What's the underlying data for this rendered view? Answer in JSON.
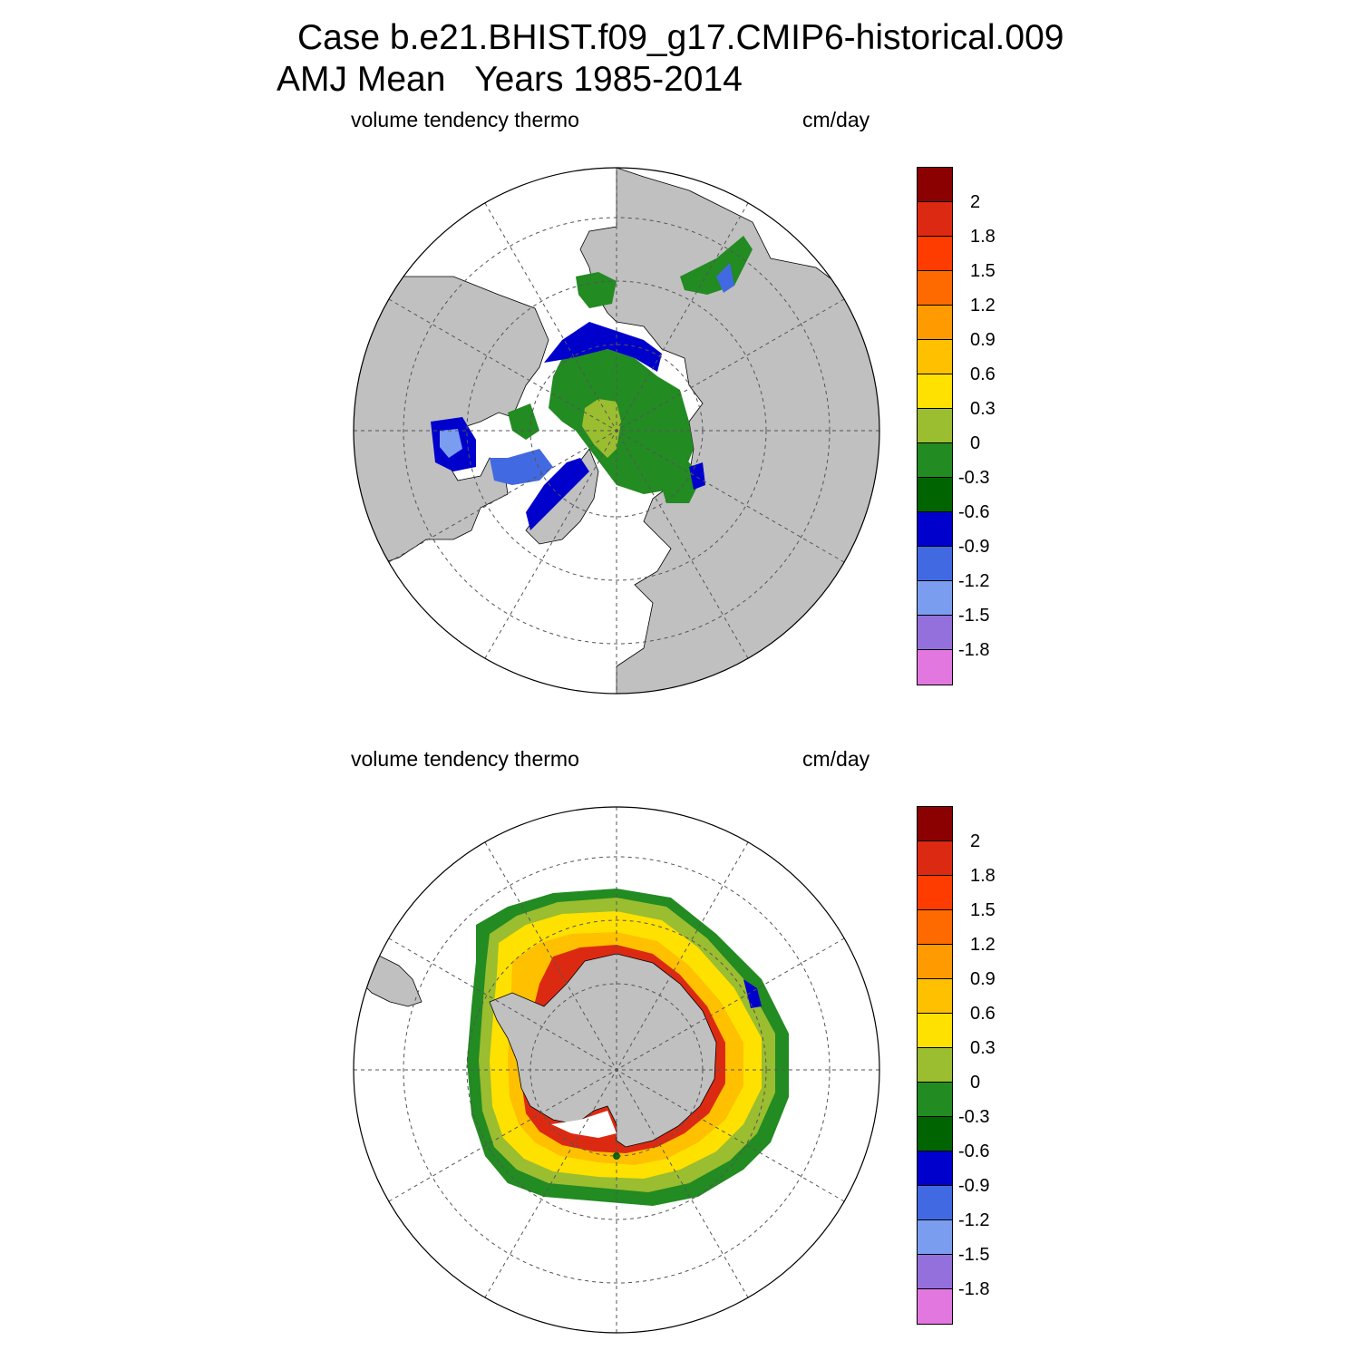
{
  "header": {
    "title_line1": "Case b.e21.BHIST.f09_g17.CMIP6-historical.009",
    "title_line2": "AMJ Mean   Years 1985-2014"
  },
  "panels": [
    {
      "id": "north",
      "left_label": "volume tendency thermo",
      "right_label": "cm/day"
    },
    {
      "id": "south",
      "left_label": "volume tendency thermo",
      "right_label": "cm/day"
    }
  ],
  "colorbar": {
    "labels": [
      "2",
      "1.8",
      "1.5",
      "1.2",
      "0.9",
      "0.6",
      "0.3",
      "0",
      "-0.3",
      "-0.6",
      "-0.9",
      "-1.2",
      "-1.5",
      "-1.8"
    ],
    "colors": [
      "#8b0000",
      "#dc2a12",
      "#ff3c00",
      "#ff6a00",
      "#ff9a00",
      "#ffc000",
      "#ffe100",
      "#9bbd30",
      "#228b22",
      "#006400",
      "#0000cd",
      "#4169e1",
      "#7b9df0",
      "#9370db",
      "#e377e0"
    ]
  },
  "colors": {
    "land": "#c0c0c0",
    "ocean": "#ffffff",
    "grid": "#555555"
  }
}
